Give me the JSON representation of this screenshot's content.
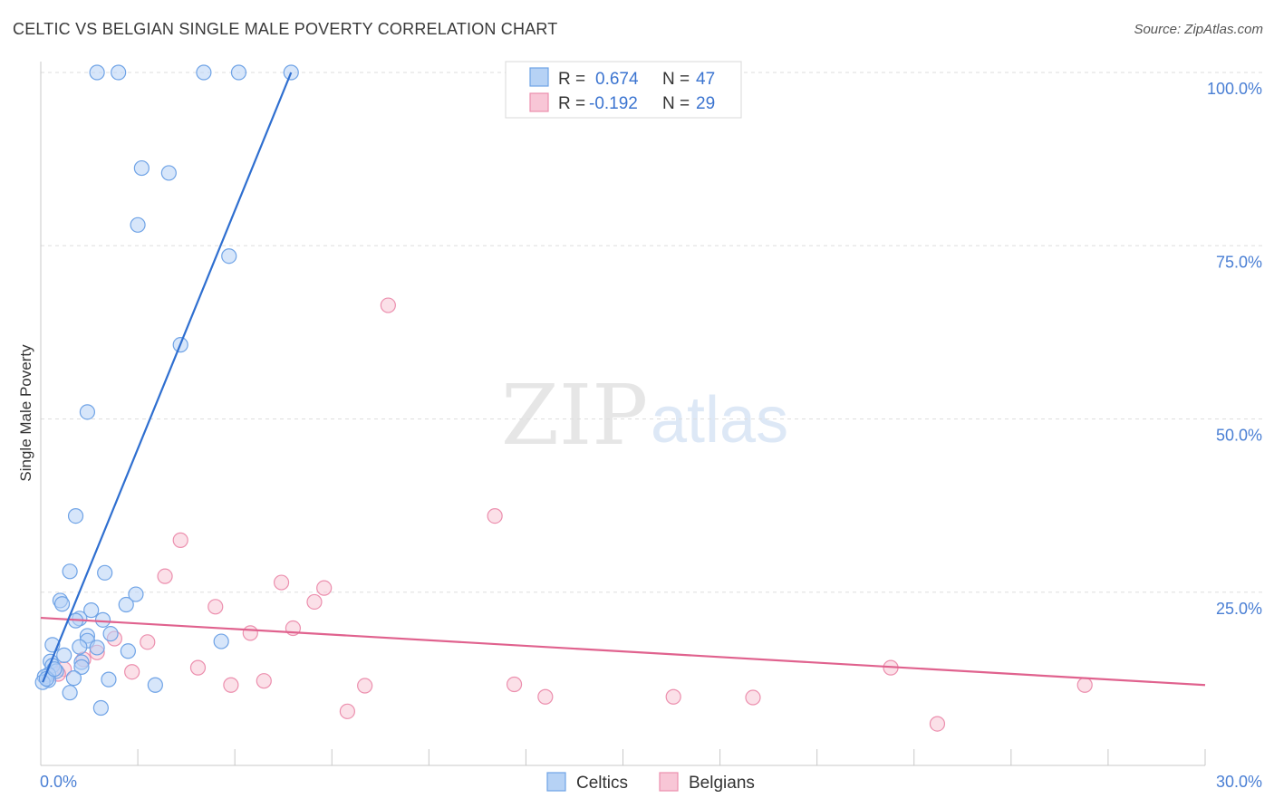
{
  "title": "CELTIC VS BELGIAN SINGLE MALE POVERTY CORRELATION CHART",
  "source": "Source: ZipAtlas.com",
  "watermark": {
    "zip": "ZIP",
    "atlas": "atlas"
  },
  "colors": {
    "celtic_fill": "#b6d2f5",
    "celtic_stroke": "#6fa3e6",
    "celtic_line": "#2f6fd0",
    "belgian_fill": "#f8c6d6",
    "belgian_stroke": "#ec8fae",
    "belgian_line": "#e0628e",
    "tick_label": "#4a7fd4"
  },
  "legend": {
    "r_label": "R =",
    "n_label": "N =",
    "celtic": {
      "r": "0.674",
      "n": "47"
    },
    "belgian": {
      "r": "-0.192",
      "n": "29"
    }
  },
  "chart_data": {
    "type": "scatter",
    "title": "CELTIC VS BELGIAN SINGLE MALE POVERTY CORRELATION CHART",
    "xlabel": "",
    "ylabel": "Single Male Poverty",
    "xlim": [
      0,
      30
    ],
    "ylim": [
      0,
      100
    ],
    "x_tick_labels": {
      "min": "0.0%",
      "max": "30.0%"
    },
    "y_ticks": [
      {
        "value": 100,
        "label": "100.0%"
      },
      {
        "value": 75,
        "label": "75.0%"
      },
      {
        "value": 50,
        "label": "50.0%"
      },
      {
        "value": 25,
        "label": "25.0%"
      }
    ],
    "series": [
      {
        "name": "Celtics",
        "trend": {
          "x": [
            0.05,
            6.45
          ],
          "y": [
            12.0,
            100.0
          ]
        },
        "points": [
          {
            "x": 1.45,
            "y": 100
          },
          {
            "x": 2.0,
            "y": 100
          },
          {
            "x": 4.2,
            "y": 100
          },
          {
            "x": 5.1,
            "y": 100
          },
          {
            "x": 6.45,
            "y": 100
          },
          {
            "x": 2.6,
            "y": 86.2
          },
          {
            "x": 3.3,
            "y": 85.5
          },
          {
            "x": 2.5,
            "y": 78.0
          },
          {
            "x": 4.85,
            "y": 73.5
          },
          {
            "x": 3.6,
            "y": 60.7
          },
          {
            "x": 1.2,
            "y": 51.0
          },
          {
            "x": 0.9,
            "y": 36.0
          },
          {
            "x": 0.75,
            "y": 28.0
          },
          {
            "x": 1.65,
            "y": 27.8
          },
          {
            "x": 2.45,
            "y": 24.7
          },
          {
            "x": 0.5,
            "y": 23.8
          },
          {
            "x": 0.55,
            "y": 23.3
          },
          {
            "x": 2.2,
            "y": 23.2
          },
          {
            "x": 1.3,
            "y": 22.4
          },
          {
            "x": 1.0,
            "y": 21.2
          },
          {
            "x": 1.6,
            "y": 21.0
          },
          {
            "x": 0.9,
            "y": 20.9
          },
          {
            "x": 1.8,
            "y": 19.0
          },
          {
            "x": 1.2,
            "y": 18.7
          },
          {
            "x": 1.2,
            "y": 18.0
          },
          {
            "x": 4.65,
            "y": 17.9
          },
          {
            "x": 0.3,
            "y": 17.4
          },
          {
            "x": 1.0,
            "y": 17.1
          },
          {
            "x": 1.45,
            "y": 17.0
          },
          {
            "x": 2.25,
            "y": 16.5
          },
          {
            "x": 0.6,
            "y": 15.9
          },
          {
            "x": 0.25,
            "y": 15.0
          },
          {
            "x": 1.05,
            "y": 14.9
          },
          {
            "x": 0.3,
            "y": 14.4
          },
          {
            "x": 1.05,
            "y": 14.2
          },
          {
            "x": 0.4,
            "y": 13.6
          },
          {
            "x": 0.2,
            "y": 13.1
          },
          {
            "x": 0.1,
            "y": 12.8
          },
          {
            "x": 0.85,
            "y": 12.6
          },
          {
            "x": 1.75,
            "y": 12.4
          },
          {
            "x": 0.2,
            "y": 12.3
          },
          {
            "x": 0.05,
            "y": 12.0
          },
          {
            "x": 2.95,
            "y": 11.6
          },
          {
            "x": 0.75,
            "y": 10.5
          },
          {
            "x": 1.55,
            "y": 8.3
          },
          {
            "x": 0.15,
            "y": 12.5
          },
          {
            "x": 0.35,
            "y": 13.9
          }
        ]
      },
      {
        "name": "Belgians",
        "trend": {
          "x": [
            0.0,
            30.0
          ],
          "y": [
            21.3,
            11.6
          ]
        },
        "points": [
          {
            "x": 8.95,
            "y": 66.4
          },
          {
            "x": 11.7,
            "y": 36.0
          },
          {
            "x": 3.6,
            "y": 32.5
          },
          {
            "x": 3.2,
            "y": 27.3
          },
          {
            "x": 6.2,
            "y": 26.4
          },
          {
            "x": 7.3,
            "y": 25.6
          },
          {
            "x": 7.05,
            "y": 23.6
          },
          {
            "x": 4.5,
            "y": 22.9
          },
          {
            "x": 6.5,
            "y": 19.8
          },
          {
            "x": 5.4,
            "y": 19.1
          },
          {
            "x": 1.9,
            "y": 18.3
          },
          {
            "x": 2.75,
            "y": 17.8
          },
          {
            "x": 1.45,
            "y": 16.3
          },
          {
            "x": 1.1,
            "y": 15.3
          },
          {
            "x": 4.05,
            "y": 14.1
          },
          {
            "x": 21.9,
            "y": 14.1
          },
          {
            "x": 0.6,
            "y": 13.9
          },
          {
            "x": 2.35,
            "y": 13.5
          },
          {
            "x": 0.45,
            "y": 13.2
          },
          {
            "x": 5.75,
            "y": 12.2
          },
          {
            "x": 4.9,
            "y": 11.6
          },
          {
            "x": 12.2,
            "y": 11.7
          },
          {
            "x": 8.35,
            "y": 11.5
          },
          {
            "x": 26.9,
            "y": 11.6
          },
          {
            "x": 13.0,
            "y": 9.9
          },
          {
            "x": 16.3,
            "y": 9.9
          },
          {
            "x": 18.35,
            "y": 9.8
          },
          {
            "x": 7.9,
            "y": 7.8
          },
          {
            "x": 23.1,
            "y": 6.0
          }
        ]
      }
    ],
    "legend_position": "top-center",
    "grid": true
  }
}
